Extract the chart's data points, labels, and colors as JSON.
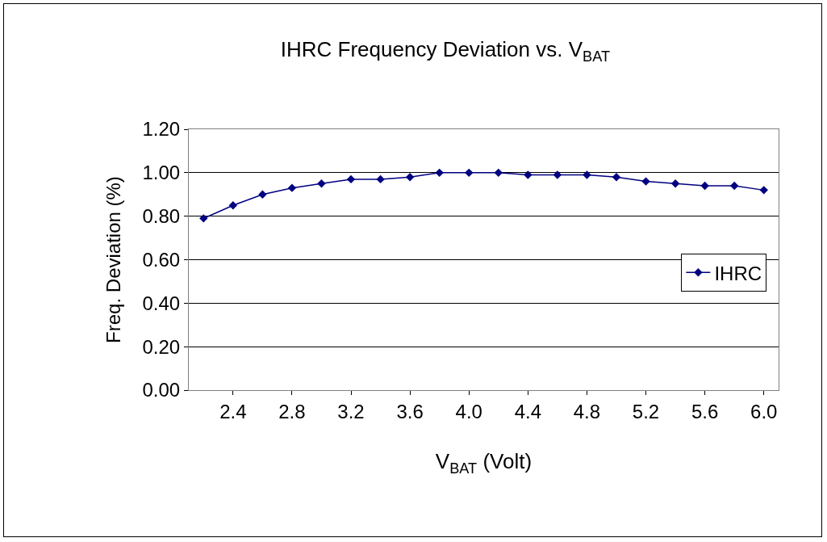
{
  "chart_data": {
    "type": "line",
    "title": "IHRC Frequency Deviation vs. V$_{BAT}$",
    "xlabel": "V$_{BAT}$ (Volt)",
    "ylabel": "Freq. Deviation (%)",
    "x": [
      2.2,
      2.4,
      2.6,
      2.8,
      3.0,
      3.2,
      3.4,
      3.6,
      3.8,
      4.0,
      4.2,
      4.4,
      4.6,
      4.8,
      5.0,
      5.2,
      5.4,
      5.6,
      5.8,
      6.0
    ],
    "series": [
      {
        "name": "IHRC",
        "color": "#000080",
        "values": [
          0.79,
          0.85,
          0.9,
          0.93,
          0.95,
          0.97,
          0.97,
          0.98,
          1.0,
          1.0,
          1.0,
          0.99,
          0.99,
          0.99,
          0.98,
          0.96,
          0.95,
          0.94,
          0.94,
          0.92
        ]
      }
    ],
    "xlim": [
      2.1,
      6.1
    ],
    "xticks": [
      {
        "value": 2.4,
        "label": "2.4"
      },
      {
        "value": 2.8,
        "label": "2.8"
      },
      {
        "value": 3.2,
        "label": "3.2"
      },
      {
        "value": 3.6,
        "label": "3.6"
      },
      {
        "value": 4.0,
        "label": "4.0"
      },
      {
        "value": 4.4,
        "label": "4.4"
      },
      {
        "value": 4.8,
        "label": "4.8"
      },
      {
        "value": 5.2,
        "label": "5.2"
      },
      {
        "value": 5.6,
        "label": "5.6"
      },
      {
        "value": 6.0,
        "label": "6.0"
      }
    ],
    "ylim": [
      0,
      1.2
    ],
    "yticks": [
      {
        "value": 0,
        "label": "0.00"
      },
      {
        "value": 0.2,
        "label": "0.20"
      },
      {
        "value": 0.4,
        "label": "0.40"
      },
      {
        "value": 0.6,
        "label": "0.60"
      },
      {
        "value": 0.8,
        "label": "0.80"
      },
      {
        "value": 1.0,
        "label": "1.00"
      },
      {
        "value": 1.2,
        "label": "1.20"
      }
    ],
    "grid": "y",
    "legend": "right",
    "marker": "diamond",
    "line_style": "solid"
  }
}
